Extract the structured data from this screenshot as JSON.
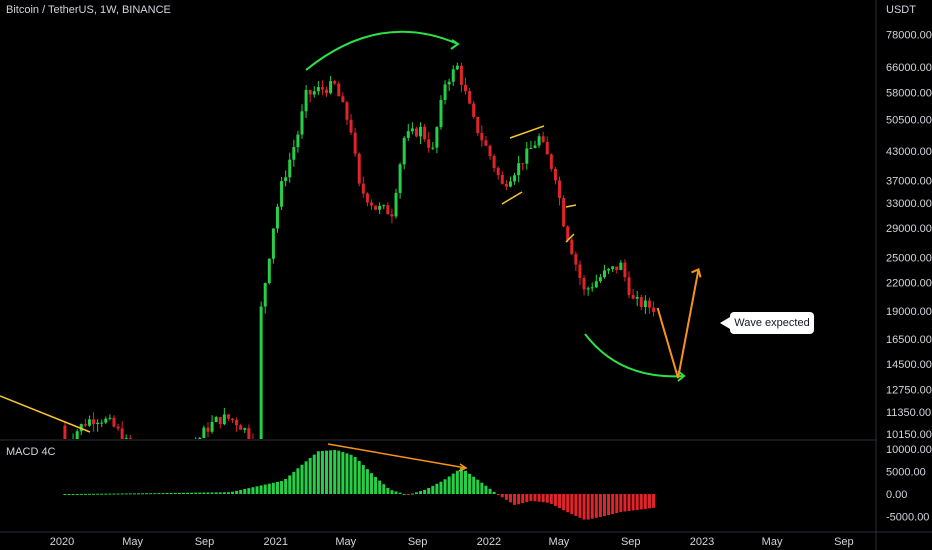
{
  "header": {
    "symbol_title": "Bitcoin / TetherUS, 1W, BINANCE",
    "indicator_name": "MACD 4C",
    "price_unit": "USDT"
  },
  "callout": {
    "text": "Wave expected"
  },
  "colors": {
    "up": "#26d046",
    "down": "#e0242a",
    "trend_line": "#f7c430",
    "wave_line": "#f7931a",
    "arc": "#2ee045",
    "grid_sep": "#2a2e39",
    "text": "#d1d4dc"
  },
  "chart_data": [
    {
      "type": "candlestick",
      "title": "Bitcoin / TetherUS, 1W, BINANCE",
      "scale": "log",
      "y_tick_labels": [
        "78000.00",
        "66000.00",
        "58000.00",
        "50500.00",
        "43000.00",
        "37000.00",
        "33000.00",
        "29000.00",
        "25000.00",
        "22000.00",
        "19000.00",
        "16500.00",
        "14500.00",
        "12750.00",
        "11350.00",
        "10150.00"
      ],
      "x_tick_labels": [
        "2020",
        "May",
        "Sep",
        "2021",
        "May",
        "Sep",
        "2022",
        "May",
        "Sep",
        "2023",
        "May",
        "Sep"
      ],
      "ohlc_close_path": [
        {
          "date": "2020-12-07",
          "close": 19200
        },
        {
          "date": "2020-12-28",
          "close": 29300
        },
        {
          "date": "2021-01-11",
          "close": 36000
        },
        {
          "date": "2021-02-08",
          "close": 47000
        },
        {
          "date": "2021-02-22",
          "close": 57000
        },
        {
          "date": "2021-03-15",
          "close": 58700
        },
        {
          "date": "2021-04-12",
          "close": 60000
        },
        {
          "date": "2021-05-10",
          "close": 48000
        },
        {
          "date": "2021-05-24",
          "close": 35700
        },
        {
          "date": "2021-06-21",
          "close": 32200
        },
        {
          "date": "2021-07-19",
          "close": 31500
        },
        {
          "date": "2021-08-09",
          "close": 46000
        },
        {
          "date": "2021-09-06",
          "close": 48000
        },
        {
          "date": "2021-09-27",
          "close": 43000
        },
        {
          "date": "2021-10-18",
          "close": 61000
        },
        {
          "date": "2021-11-08",
          "close": 66000
        },
        {
          "date": "2021-12-06",
          "close": 50000
        },
        {
          "date": "2022-01-03",
          "close": 42000
        },
        {
          "date": "2022-01-24",
          "close": 36000
        },
        {
          "date": "2022-02-21",
          "close": 40000
        },
        {
          "date": "2022-03-28",
          "close": 46000
        },
        {
          "date": "2022-04-25",
          "close": 38000
        },
        {
          "date": "2022-05-09",
          "close": 30000
        },
        {
          "date": "2022-06-13",
          "close": 21000
        },
        {
          "date": "2022-07-18",
          "close": 23000
        },
        {
          "date": "2022-08-15",
          "close": 24000
        },
        {
          "date": "2022-09-05",
          "close": 20000
        },
        {
          "date": "2022-10-10",
          "close": 19300
        }
      ],
      "projection": [
        {
          "date": "2022-10-17",
          "value": 19300
        },
        {
          "date": "2022-11-21",
          "value": 13500
        },
        {
          "date": "2022-12-26",
          "value": 23500
        }
      ]
    },
    {
      "type": "bar",
      "title": "MACD 4C",
      "y_tick_labels": [
        "10000.00",
        "5000.00",
        "0.00",
        "-5000.00"
      ],
      "series": [
        {
          "date": "2020-01",
          "value": 0
        },
        {
          "date": "2020-06",
          "value": 200
        },
        {
          "date": "2020-10",
          "value": 400
        },
        {
          "date": "2021-01",
          "value": 3000
        },
        {
          "date": "2021-02",
          "value": 6500
        },
        {
          "date": "2021-03",
          "value": 9500
        },
        {
          "date": "2021-04",
          "value": 9800
        },
        {
          "date": "2021-05",
          "value": 8500
        },
        {
          "date": "2021-06",
          "value": 4500
        },
        {
          "date": "2021-07",
          "value": 1000
        },
        {
          "date": "2021-08",
          "value": -200
        },
        {
          "date": "2021-09",
          "value": 1000
        },
        {
          "date": "2021-10",
          "value": 3000
        },
        {
          "date": "2021-11",
          "value": 5800
        },
        {
          "date": "2021-12",
          "value": 3000
        },
        {
          "date": "2022-01",
          "value": 0
        },
        {
          "date": "2022-02",
          "value": -2500
        },
        {
          "date": "2022-03",
          "value": -1500
        },
        {
          "date": "2022-04",
          "value": -2000
        },
        {
          "date": "2022-05",
          "value": -4000
        },
        {
          "date": "2022-06",
          "value": -5800
        },
        {
          "date": "2022-07",
          "value": -5000
        },
        {
          "date": "2022-08",
          "value": -4000
        },
        {
          "date": "2022-09",
          "value": -3500
        },
        {
          "date": "2022-10",
          "value": -3000
        }
      ]
    }
  ]
}
